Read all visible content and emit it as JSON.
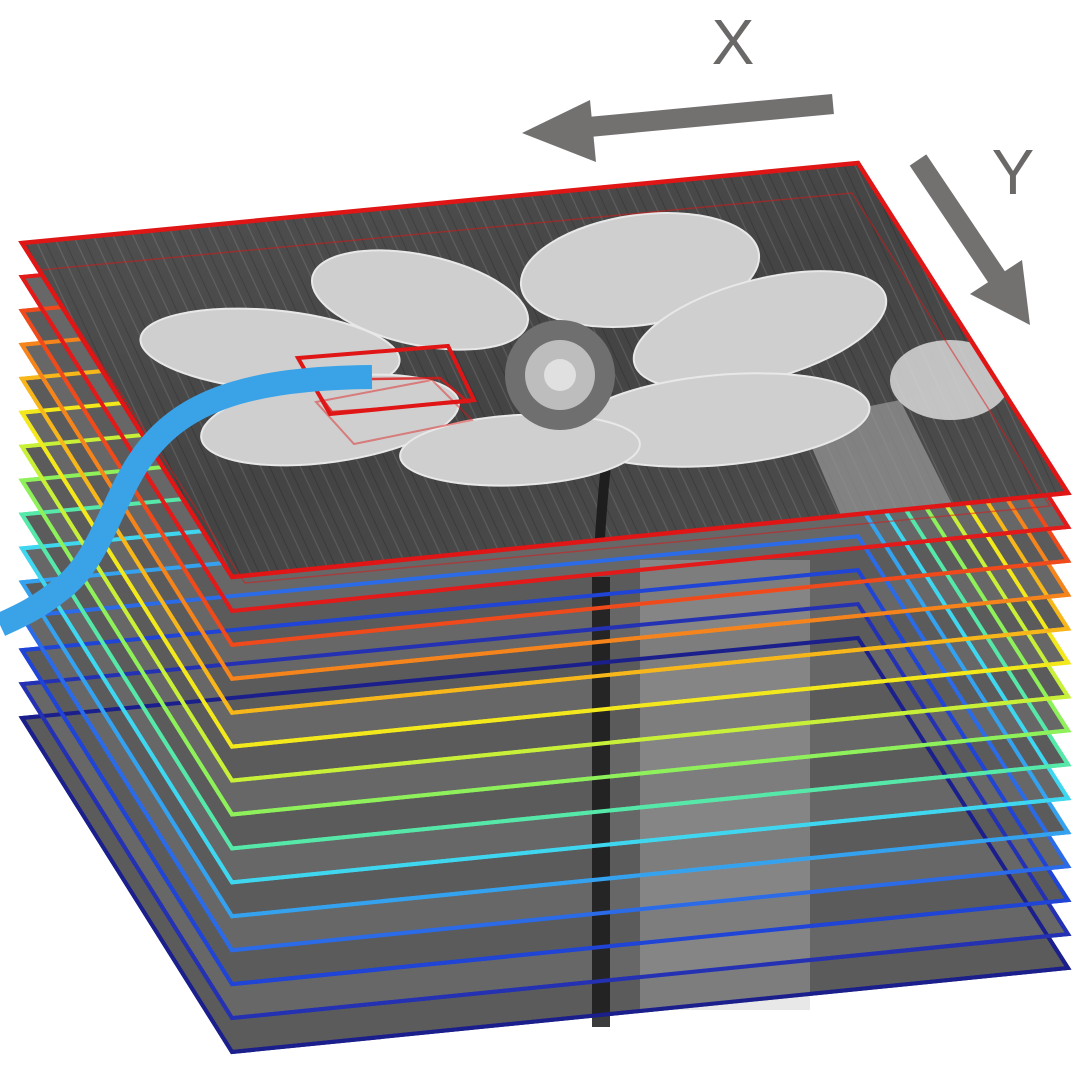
{
  "axes": {
    "x_label": "X",
    "y_label": "Y",
    "arrow_color": "#737070",
    "label_color": "#6b6868"
  },
  "stack": {
    "frame_colors": [
      "#1b1f8c",
      "#2431b3",
      "#1f44d6",
      "#2b6be8",
      "#35a2f0",
      "#3fd7f0",
      "#55e8a8",
      "#8ef05a",
      "#c8f038",
      "#f3e81c",
      "#f7b71a",
      "#f5841c",
      "#ef4a1c",
      "#e31a1a"
    ],
    "top_frame_color": "#e01515",
    "image_description_icon": "grayscale-flower-photo"
  },
  "highlight": {
    "patch_color": "#e01515",
    "path_color": "#3aa3e8"
  }
}
